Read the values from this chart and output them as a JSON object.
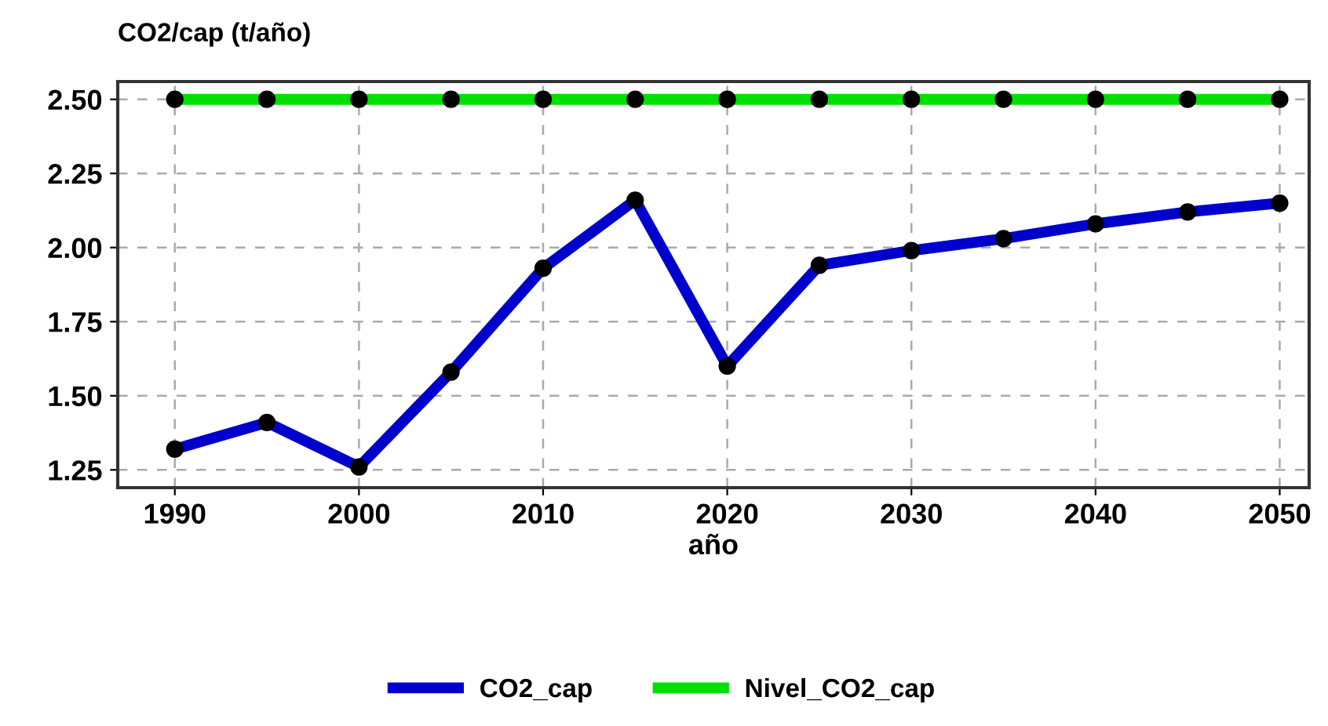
{
  "chart_data": {
    "type": "line",
    "ylabel": "CO2/cap (t/año)",
    "xlabel": "año",
    "x": [
      1990,
      1995,
      2000,
      2005,
      2010,
      2015,
      2020,
      2025,
      2030,
      2035,
      2040,
      2045,
      2050
    ],
    "series": [
      {
        "name": "CO2_cap",
        "color": "#0000cc",
        "values": [
          1.32,
          1.41,
          1.26,
          1.58,
          1.93,
          2.16,
          1.6,
          1.94,
          1.99,
          2.03,
          2.08,
          2.12,
          2.15
        ]
      },
      {
        "name": "Nivel_CO2_cap",
        "color": "#00e000",
        "values": [
          2.5,
          2.5,
          2.5,
          2.5,
          2.5,
          2.5,
          2.5,
          2.5,
          2.5,
          2.5,
          2.5,
          2.5,
          2.5
        ]
      }
    ],
    "xlim": [
      1986.9,
      2051.6
    ],
    "xticks": [
      1990,
      2000,
      2010,
      2020,
      2030,
      2040,
      2050
    ],
    "ylim": [
      1.19,
      2.56
    ],
    "yticks": [
      {
        "value": 1.25,
        "label": "1.25"
      },
      {
        "value": 1.5,
        "label": "1.50"
      },
      {
        "value": 1.75,
        "label": "1.75"
      },
      {
        "value": 2.0,
        "label": "2.00"
      },
      {
        "value": 2.25,
        "label": "2.25"
      },
      {
        "value": 2.5,
        "label": "2.50"
      }
    ],
    "grid": true,
    "legend": "bottom",
    "marker": "circle",
    "line_style": "solid"
  }
}
